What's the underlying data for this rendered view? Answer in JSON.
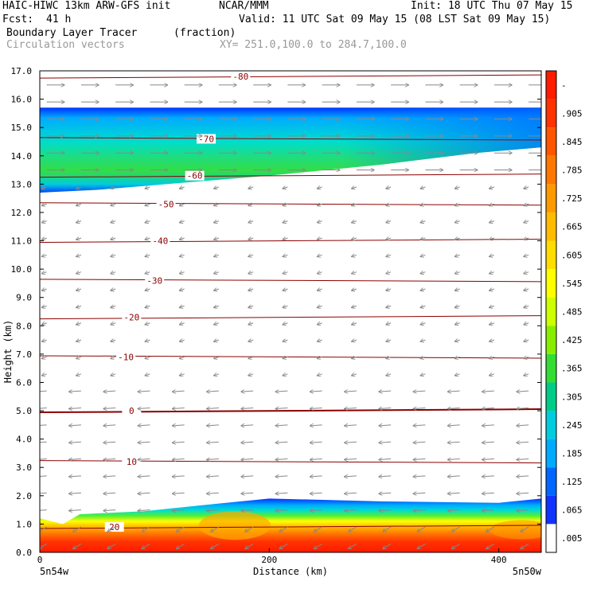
{
  "header": {
    "model": "HAIC-HIWC 13km ARW-GFS init",
    "org": "NCAR/MMM",
    "init": "Init: 18 UTC Thu 07 May 15",
    "fcst_label": "Fcst:",
    "fcst_value": "41 h",
    "valid": "Valid: 11 UTC Sat 09 May 15 (08 LST Sat 09 May 15)",
    "field_name": "Boundary Layer Tracer",
    "field_units": "(fraction)",
    "vector_label": "Circulation vectors",
    "xy_label": "XY= 251.0,100.0 to 284.7,100.0"
  },
  "chart_data": {
    "type": "heatmap",
    "title": "Boundary Layer Tracer",
    "xlabel": "Distance (km)",
    "ylabel": "Height (km)",
    "xlim": [
      0,
      437
    ],
    "ylim": [
      0,
      17
    ],
    "x_ticks": [
      "0",
      "200",
      "400"
    ],
    "x_end_labels": [
      "5n54w",
      "5n50w"
    ],
    "y_ticks": [
      "0.0",
      "1.0",
      "2.0",
      "3.0",
      "4.0",
      "5.0",
      "6.0",
      "7.0",
      "8.0",
      "9.0",
      "10.0",
      "11.0",
      "12.0",
      "13.0",
      "14.0",
      "15.0",
      "16.0",
      "17.0"
    ],
    "colorbar": {
      "labels": [
        "-",
        ".905",
        ".845",
        ".785",
        ".725",
        ".665",
        ".605",
        ".545",
        ".485",
        ".425",
        ".365",
        ".305",
        ".245",
        ".185",
        ".125",
        ".065",
        ".005"
      ],
      "colors": [
        "#ff1a00",
        "#ff3300",
        "#ff5500",
        "#ff7700",
        "#ff9900",
        "#ffbb00",
        "#ffdd00",
        "#ffff00",
        "#ccff00",
        "#88ee00",
        "#33dd33",
        "#00cc88",
        "#00ccdd",
        "#00aaff",
        "#0066ff",
        "#1133ff",
        "#ffffff"
      ]
    },
    "tracer_layers": [
      {
        "name": "upper",
        "base_km_left": 12.7,
        "base_km_right": 14.3,
        "top_km": 15.7,
        "max_fraction": 0.5
      },
      {
        "name": "boundary",
        "base_km": 0.0,
        "top_km": 1.9,
        "max_fraction": 1.0
      }
    ],
    "isotherms": [
      {
        "label": "-80",
        "height_km": 16.8
      },
      {
        "label": "-70",
        "height_km": 14.6
      },
      {
        "label": "-60",
        "height_km": 13.3
      },
      {
        "label": "-50",
        "height_km": 12.3
      },
      {
        "label": "-40",
        "height_km": 11.0
      },
      {
        "label": "-30",
        "height_km": 9.6
      },
      {
        "label": "-20",
        "height_km": 8.3
      },
      {
        "label": "-10",
        "height_km": 6.9
      },
      {
        "label": "0",
        "height_km": 5.0
      },
      {
        "label": "10",
        "height_km": 3.2
      },
      {
        "label": "20",
        "height_km": 0.9
      }
    ],
    "vector_regimes": [
      {
        "layer": "upper",
        "height_min_km": 13.0,
        "height_max_km": 16.8,
        "direction": "east",
        "strength": "strong"
      },
      {
        "layer": "middle",
        "height_min_km": 6.0,
        "height_max_km": 13.0,
        "direction": "light variable",
        "strength": "weak"
      },
      {
        "layer": "lower",
        "height_min_km": 1.5,
        "height_max_km": 6.0,
        "direction": "west",
        "strength": "moderate"
      },
      {
        "layer": "boundary",
        "height_min_km": 0.0,
        "height_max_km": 1.5,
        "direction": "southwest",
        "strength": "moderate"
      }
    ],
    "colors": {
      "contour": "#8b0000",
      "vector": "#888888",
      "frame": "#000000"
    }
  }
}
